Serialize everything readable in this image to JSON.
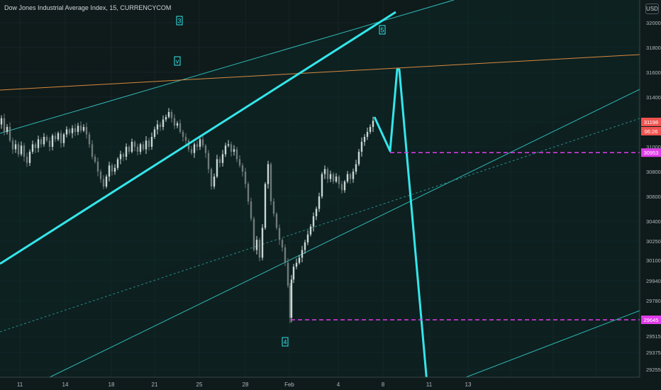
{
  "title": "Dow Jones Industrial Average Index, 15, CURRENCYCOM",
  "currency_button": "USD",
  "colors": {
    "background": "#0f1a1a",
    "channel": "#2fb8b4",
    "channel_fill": "#0c2a2a",
    "wave": "#34e6ea",
    "orange_line": "#d88a3e",
    "magenta": "#e03ce8",
    "candle_up": "#c9d8d4",
    "candle_down": "#6f7a78",
    "price_tag": "#ef5350"
  },
  "chart_data": {
    "type": "candlestick",
    "y_axis": {
      "ticks": [
        32000,
        31800,
        31600,
        31400,
        31200,
        31000,
        30800,
        30600,
        30400,
        30250,
        30100,
        29940,
        29780,
        29645,
        29515,
        29375,
        29255
      ]
    },
    "x_axis": {
      "ticks": [
        "11",
        "14",
        "18",
        "21",
        "25",
        "28",
        "Feb",
        "4",
        "8",
        "11",
        "13"
      ]
    },
    "price_path": [
      [
        0,
        31180
      ],
      [
        4,
        31230
      ],
      [
        8,
        31120
      ],
      [
        12,
        31160
      ],
      [
        16,
        31050
      ],
      [
        20,
        30980
      ],
      [
        24,
        31020
      ],
      [
        28,
        30940
      ],
      [
        32,
        31010
      ],
      [
        36,
        30920
      ],
      [
        40,
        30870
      ],
      [
        44,
        30960
      ],
      [
        48,
        31020
      ],
      [
        52,
        30990
      ],
      [
        56,
        31060
      ],
      [
        60,
        31020
      ],
      [
        64,
        31080
      ],
      [
        68,
        31050
      ],
      [
        72,
        31000
      ],
      [
        76,
        31090
      ],
      [
        80,
        31060
      ],
      [
        84,
        31110
      ],
      [
        88,
        31030
      ],
      [
        92,
        31100
      ],
      [
        96,
        31140
      ],
      [
        100,
        31110
      ],
      [
        104,
        31150
      ],
      [
        108,
        31120
      ],
      [
        112,
        31170
      ],
      [
        116,
        31130
      ],
      [
        120,
        31160
      ],
      [
        124,
        31100
      ],
      [
        128,
        31020
      ],
      [
        132,
        30920
      ],
      [
        136,
        30880
      ],
      [
        140,
        30800
      ],
      [
        144,
        30740
      ],
      [
        148,
        30680
      ],
      [
        152,
        30760
      ],
      [
        156,
        30850
      ],
      [
        160,
        30800
      ],
      [
        164,
        30830
      ],
      [
        168,
        30900
      ],
      [
        172,
        30940
      ],
      [
        176,
        30920
      ],
      [
        180,
        31000
      ],
      [
        184,
        30960
      ],
      [
        188,
        31040
      ],
      [
        192,
        31000
      ],
      [
        196,
        30960
      ],
      [
        200,
        31020
      ],
      [
        204,
        30980
      ],
      [
        208,
        31050
      ],
      [
        212,
        31000
      ],
      [
        216,
        31080
      ],
      [
        220,
        31140
      ],
      [
        224,
        31180
      ],
      [
        228,
        31160
      ],
      [
        232,
        31220
      ],
      [
        236,
        31240
      ],
      [
        240,
        31280
      ],
      [
        244,
        31230
      ],
      [
        248,
        31170
      ],
      [
        252,
        31190
      ],
      [
        256,
        31120
      ],
      [
        260,
        31080
      ],
      [
        264,
        31050
      ],
      [
        268,
        30980
      ],
      [
        272,
        30950
      ],
      [
        276,
        31020
      ],
      [
        280,
        31000
      ],
      [
        284,
        31060
      ],
      [
        288,
        31010
      ],
      [
        292,
        30950
      ],
      [
        296,
        30820
      ],
      [
        300,
        30680
      ],
      [
        304,
        30760
      ],
      [
        308,
        30900
      ],
      [
        312,
        30870
      ],
      [
        316,
        30940
      ],
      [
        320,
        31010
      ],
      [
        324,
        31020
      ],
      [
        328,
        30960
      ],
      [
        332,
        30980
      ],
      [
        336,
        30900
      ],
      [
        340,
        30850
      ],
      [
        344,
        30800
      ],
      [
        348,
        30700
      ],
      [
        352,
        30560
      ],
      [
        356,
        30420
      ],
      [
        360,
        30180
      ],
      [
        364,
        30260
      ],
      [
        368,
        30120
      ],
      [
        372,
        30350
      ],
      [
        376,
        30700
      ],
      [
        380,
        30860
      ],
      [
        384,
        30560
      ],
      [
        388,
        30460
      ],
      [
        392,
        30350
      ],
      [
        396,
        30260
      ],
      [
        400,
        30200
      ],
      [
        404,
        30080
      ],
      [
        408,
        29900
      ],
      [
        410,
        29660
      ],
      [
        412,
        29950
      ],
      [
        416,
        30050
      ],
      [
        420,
        30080
      ],
      [
        424,
        30120
      ],
      [
        428,
        30180
      ],
      [
        432,
        30240
      ],
      [
        436,
        30300
      ],
      [
        440,
        30360
      ],
      [
        444,
        30440
      ],
      [
        448,
        30500
      ],
      [
        452,
        30600
      ],
      [
        456,
        30780
      ],
      [
        460,
        30820
      ],
      [
        464,
        30740
      ],
      [
        468,
        30780
      ],
      [
        472,
        30720
      ],
      [
        476,
        30760
      ],
      [
        480,
        30700
      ],
      [
        484,
        30650
      ],
      [
        488,
        30720
      ],
      [
        492,
        30780
      ],
      [
        496,
        30740
      ],
      [
        500,
        30800
      ],
      [
        504,
        30860
      ],
      [
        508,
        30960
      ],
      [
        512,
        31040
      ],
      [
        516,
        31080
      ],
      [
        520,
        31120
      ],
      [
        524,
        31160
      ],
      [
        528,
        31210
      ]
    ],
    "annotations": [
      {
        "label": "3",
        "type": "wave-label"
      },
      {
        "label": "v",
        "type": "wave-label"
      },
      {
        "label": "5",
        "type": "wave-label"
      },
      {
        "label": "4",
        "type": "wave-label"
      }
    ],
    "price_tags": [
      {
        "text": "31198",
        "value": 31198,
        "color": "#ef5350"
      },
      {
        "text": "06:26",
        "color": "#ef5350"
      },
      {
        "text": "30953",
        "value": 30953,
        "color": "#e03ce8"
      },
      {
        "text": "29645",
        "value": 29645,
        "color": "#e03ce8"
      }
    ]
  }
}
